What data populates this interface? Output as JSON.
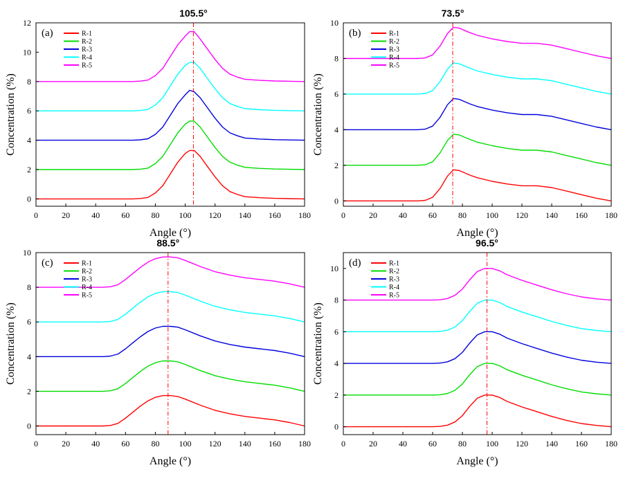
{
  "chart_data": [
    {
      "type": "line",
      "panel_label": "(a)",
      "title": "105.5°",
      "xlabel": "Angle (°)",
      "ylabel": "Concentration (%)",
      "xlim": [
        0,
        180
      ],
      "ylim": [
        -0.5,
        12
      ],
      "xticks": [
        0,
        20,
        40,
        60,
        80,
        100,
        120,
        140,
        160,
        180
      ],
      "yticks": [
        0,
        2,
        4,
        6,
        8,
        10,
        12
      ],
      "peak_line_x": 105.5,
      "grid": false,
      "legend_position": "top-left",
      "series": [
        {
          "name": "R-1",
          "color": "#ff0000",
          "x": [
            0,
            65,
            70,
            75,
            80,
            85,
            90,
            95,
            100,
            103,
            106,
            110,
            115,
            120,
            125,
            130,
            135,
            140,
            150,
            160,
            170,
            180
          ],
          "y": [
            0,
            0,
            0.03,
            0.1,
            0.4,
            0.9,
            1.7,
            2.5,
            3.1,
            3.3,
            3.3,
            2.9,
            2.2,
            1.5,
            0.9,
            0.5,
            0.3,
            0.15,
            0.08,
            0.04,
            0.02,
            0
          ]
        },
        {
          "name": "R-2",
          "color": "#00dd00",
          "x": [
            0,
            65,
            70,
            75,
            80,
            85,
            90,
            95,
            100,
            103,
            106,
            110,
            115,
            120,
            125,
            130,
            135,
            140,
            150,
            160,
            170,
            180
          ],
          "y": [
            2,
            2,
            2.03,
            2.1,
            2.4,
            2.9,
            3.7,
            4.5,
            5.1,
            5.3,
            5.3,
            4.9,
            4.2,
            3.5,
            2.9,
            2.5,
            2.3,
            2.15,
            2.08,
            2.04,
            2.02,
            2
          ]
        },
        {
          "name": "R-3",
          "color": "#0000dd",
          "x": [
            0,
            65,
            70,
            75,
            80,
            85,
            90,
            95,
            100,
            103,
            106,
            110,
            115,
            120,
            125,
            130,
            135,
            140,
            150,
            160,
            170,
            180
          ],
          "y": [
            4,
            4,
            4.03,
            4.1,
            4.4,
            4.9,
            5.7,
            6.5,
            7.1,
            7.4,
            7.3,
            6.9,
            6.2,
            5.5,
            4.9,
            4.5,
            4.3,
            4.15,
            4.08,
            4.04,
            4.02,
            4
          ]
        },
        {
          "name": "R-4",
          "color": "#00ffff",
          "x": [
            0,
            65,
            70,
            75,
            80,
            85,
            90,
            95,
            100,
            103,
            106,
            110,
            115,
            120,
            125,
            130,
            135,
            140,
            150,
            160,
            170,
            180
          ],
          "y": [
            6,
            6,
            6.03,
            6.1,
            6.4,
            6.9,
            7.7,
            8.5,
            9.1,
            9.3,
            9.3,
            8.9,
            8.2,
            7.5,
            6.9,
            6.5,
            6.3,
            6.15,
            6.08,
            6.04,
            6.02,
            6
          ]
        },
        {
          "name": "R-5",
          "color": "#ff00ff",
          "x": [
            0,
            65,
            70,
            75,
            80,
            85,
            90,
            95,
            100,
            103,
            106,
            110,
            115,
            120,
            125,
            130,
            135,
            140,
            150,
            160,
            170,
            180
          ],
          "y": [
            8,
            8,
            8.03,
            8.1,
            8.4,
            8.9,
            9.7,
            10.5,
            11.1,
            11.4,
            11.4,
            10.9,
            10.2,
            9.5,
            8.9,
            8.5,
            8.3,
            8.15,
            8.08,
            8.04,
            8.02,
            8
          ]
        }
      ]
    },
    {
      "type": "line",
      "panel_label": "(b)",
      "title": "73.5°",
      "xlabel": "Angle (°)",
      "ylabel": "Concentration (%)",
      "xlim": [
        0,
        180
      ],
      "ylim": [
        -0.3,
        10
      ],
      "xticks": [
        0,
        20,
        40,
        60,
        80,
        100,
        120,
        140,
        160,
        180
      ],
      "yticks": [
        0,
        2,
        4,
        6,
        8,
        10
      ],
      "peak_line_x": 73.5,
      "grid": false,
      "legend_position": "top-left",
      "series": [
        {
          "name": "R-1",
          "color": "#ff0000",
          "x": [
            0,
            50,
            55,
            60,
            65,
            70,
            74,
            78,
            85,
            90,
            100,
            110,
            120,
            130,
            140,
            150,
            160,
            170,
            180
          ],
          "y": [
            0,
            0,
            0.03,
            0.2,
            0.7,
            1.4,
            1.75,
            1.7,
            1.45,
            1.3,
            1.1,
            0.95,
            0.85,
            0.85,
            0.75,
            0.55,
            0.35,
            0.15,
            0
          ]
        },
        {
          "name": "R-2",
          "color": "#00dd00",
          "x": [
            0,
            50,
            55,
            60,
            65,
            70,
            74,
            78,
            85,
            90,
            100,
            110,
            120,
            130,
            140,
            150,
            160,
            170,
            180
          ],
          "y": [
            2,
            2,
            2.03,
            2.2,
            2.7,
            3.4,
            3.75,
            3.7,
            3.45,
            3.3,
            3.1,
            2.95,
            2.85,
            2.85,
            2.75,
            2.55,
            2.35,
            2.15,
            2
          ]
        },
        {
          "name": "R-3",
          "color": "#0000dd",
          "x": [
            0,
            50,
            55,
            60,
            65,
            70,
            74,
            78,
            85,
            90,
            100,
            110,
            120,
            130,
            140,
            150,
            160,
            170,
            180
          ],
          "y": [
            4,
            4,
            4.03,
            4.2,
            4.7,
            5.4,
            5.75,
            5.7,
            5.45,
            5.3,
            5.1,
            4.95,
            4.85,
            4.85,
            4.75,
            4.55,
            4.35,
            4.15,
            4
          ]
        },
        {
          "name": "R-4",
          "color": "#00ffff",
          "x": [
            0,
            50,
            55,
            60,
            65,
            70,
            74,
            78,
            85,
            90,
            100,
            110,
            120,
            130,
            140,
            150,
            160,
            170,
            180
          ],
          "y": [
            6,
            6,
            6.03,
            6.2,
            6.7,
            7.4,
            7.75,
            7.7,
            7.45,
            7.3,
            7.1,
            6.95,
            6.85,
            6.85,
            6.75,
            6.55,
            6.35,
            6.15,
            6
          ]
        },
        {
          "name": "R-5",
          "color": "#ff00ff",
          "x": [
            0,
            50,
            55,
            60,
            65,
            70,
            74,
            78,
            85,
            90,
            100,
            110,
            120,
            130,
            140,
            150,
            160,
            170,
            180
          ],
          "y": [
            8,
            8,
            8.03,
            8.2,
            8.7,
            9.4,
            9.75,
            9.7,
            9.45,
            9.3,
            9.1,
            8.95,
            8.85,
            8.85,
            8.75,
            8.55,
            8.35,
            8.15,
            8
          ]
        }
      ]
    },
    {
      "type": "line",
      "panel_label": "(c)",
      "title": "88.5°",
      "xlabel": "Angle (°)",
      "ylabel": "Concentration (%)",
      "xlim": [
        0,
        180
      ],
      "ylim": [
        -0.5,
        10
      ],
      "xticks": [
        0,
        20,
        40,
        60,
        80,
        100,
        120,
        140,
        160,
        180
      ],
      "yticks": [
        0,
        2,
        4,
        6,
        8,
        10
      ],
      "peak_line_x": 88.5,
      "grid": false,
      "legend_position": "top-left",
      "series": [
        {
          "name": "R-1",
          "color": "#ff0000",
          "x": [
            0,
            45,
            50,
            55,
            60,
            65,
            70,
            75,
            80,
            85,
            90,
            95,
            100,
            110,
            120,
            130,
            140,
            150,
            160,
            170,
            180
          ],
          "y": [
            0,
            0,
            0.03,
            0.15,
            0.45,
            0.8,
            1.15,
            1.45,
            1.65,
            1.75,
            1.75,
            1.7,
            1.55,
            1.2,
            0.9,
            0.7,
            0.55,
            0.45,
            0.35,
            0.2,
            0
          ]
        },
        {
          "name": "R-2",
          "color": "#00dd00",
          "x": [
            0,
            45,
            50,
            55,
            60,
            65,
            70,
            75,
            80,
            85,
            90,
            95,
            100,
            110,
            120,
            130,
            140,
            150,
            160,
            170,
            180
          ],
          "y": [
            2,
            2,
            2.03,
            2.15,
            2.45,
            2.8,
            3.15,
            3.45,
            3.65,
            3.75,
            3.75,
            3.7,
            3.55,
            3.2,
            2.9,
            2.7,
            2.55,
            2.45,
            2.35,
            2.2,
            2
          ]
        },
        {
          "name": "R-3",
          "color": "#0000dd",
          "x": [
            0,
            45,
            50,
            55,
            60,
            65,
            70,
            75,
            80,
            85,
            90,
            95,
            100,
            110,
            120,
            130,
            140,
            150,
            160,
            170,
            180
          ],
          "y": [
            4,
            4,
            4.03,
            4.15,
            4.45,
            4.8,
            5.15,
            5.45,
            5.65,
            5.75,
            5.75,
            5.7,
            5.55,
            5.2,
            4.9,
            4.7,
            4.55,
            4.45,
            4.35,
            4.2,
            4
          ]
        },
        {
          "name": "R-4",
          "color": "#00ffff",
          "x": [
            0,
            45,
            50,
            55,
            60,
            65,
            70,
            75,
            80,
            85,
            90,
            95,
            100,
            110,
            120,
            130,
            140,
            150,
            160,
            170,
            180
          ],
          "y": [
            6,
            6,
            6.03,
            6.15,
            6.45,
            6.8,
            7.15,
            7.45,
            7.65,
            7.75,
            7.75,
            7.7,
            7.55,
            7.2,
            6.9,
            6.7,
            6.55,
            6.45,
            6.35,
            6.2,
            6
          ]
        },
        {
          "name": "R-5",
          "color": "#ff00ff",
          "x": [
            0,
            45,
            50,
            55,
            60,
            65,
            70,
            75,
            80,
            85,
            90,
            95,
            100,
            110,
            120,
            130,
            140,
            150,
            160,
            170,
            180
          ],
          "y": [
            8,
            8,
            8.03,
            8.15,
            8.45,
            8.8,
            9.15,
            9.45,
            9.65,
            9.75,
            9.75,
            9.7,
            9.55,
            9.2,
            8.9,
            8.7,
            8.55,
            8.45,
            8.35,
            8.2,
            8
          ]
        }
      ]
    },
    {
      "type": "line",
      "panel_label": "(d)",
      "title": "96.5°",
      "xlabel": "Angle (°)",
      "ylabel": "Concentration (%)",
      "xlim": [
        0,
        180
      ],
      "ylim": [
        -0.5,
        11
      ],
      "xticks": [
        0,
        20,
        40,
        60,
        80,
        100,
        120,
        140,
        160,
        180
      ],
      "yticks": [
        0,
        2,
        4,
        6,
        8,
        10
      ],
      "peak_line_x": 96.5,
      "grid": false,
      "legend_position": "top-left",
      "series": [
        {
          "name": "R-1",
          "color": "#ff0000",
          "x": [
            0,
            60,
            65,
            70,
            75,
            80,
            85,
            90,
            95,
            100,
            105,
            110,
            120,
            130,
            140,
            150,
            160,
            170,
            180
          ],
          "y": [
            0,
            0,
            0.02,
            0.1,
            0.3,
            0.7,
            1.3,
            1.8,
            2.0,
            2.0,
            1.85,
            1.6,
            1.25,
            0.95,
            0.65,
            0.4,
            0.2,
            0.08,
            0
          ]
        },
        {
          "name": "R-2",
          "color": "#00dd00",
          "x": [
            0,
            60,
            65,
            70,
            75,
            80,
            85,
            90,
            95,
            100,
            105,
            110,
            120,
            130,
            140,
            150,
            160,
            170,
            180
          ],
          "y": [
            2,
            2,
            2.02,
            2.1,
            2.3,
            2.7,
            3.3,
            3.8,
            4.0,
            4.0,
            3.85,
            3.6,
            3.25,
            2.95,
            2.65,
            2.4,
            2.2,
            2.08,
            2
          ]
        },
        {
          "name": "R-3",
          "color": "#0000dd",
          "x": [
            0,
            60,
            65,
            70,
            75,
            80,
            85,
            90,
            95,
            100,
            105,
            110,
            120,
            130,
            140,
            150,
            160,
            170,
            180
          ],
          "y": [
            4,
            4,
            4.02,
            4.1,
            4.3,
            4.7,
            5.3,
            5.8,
            6.0,
            6.0,
            5.85,
            5.6,
            5.25,
            4.95,
            4.65,
            4.4,
            4.2,
            4.08,
            4
          ]
        },
        {
          "name": "R-4",
          "color": "#00ffff",
          "x": [
            0,
            60,
            65,
            70,
            75,
            80,
            85,
            90,
            95,
            100,
            105,
            110,
            120,
            130,
            140,
            150,
            160,
            170,
            180
          ],
          "y": [
            6,
            6,
            6.02,
            6.1,
            6.3,
            6.7,
            7.3,
            7.8,
            8.0,
            8.0,
            7.85,
            7.6,
            7.25,
            6.95,
            6.65,
            6.4,
            6.2,
            6.08,
            6
          ]
        },
        {
          "name": "R-5",
          "color": "#ff00ff",
          "x": [
            0,
            60,
            65,
            70,
            75,
            80,
            85,
            90,
            95,
            100,
            105,
            110,
            120,
            130,
            140,
            150,
            160,
            170,
            180
          ],
          "y": [
            8,
            8,
            8.02,
            8.1,
            8.3,
            8.7,
            9.3,
            9.8,
            10.0,
            10.0,
            9.85,
            9.6,
            9.25,
            8.95,
            8.65,
            8.4,
            8.2,
            8.08,
            8
          ]
        }
      ]
    }
  ]
}
